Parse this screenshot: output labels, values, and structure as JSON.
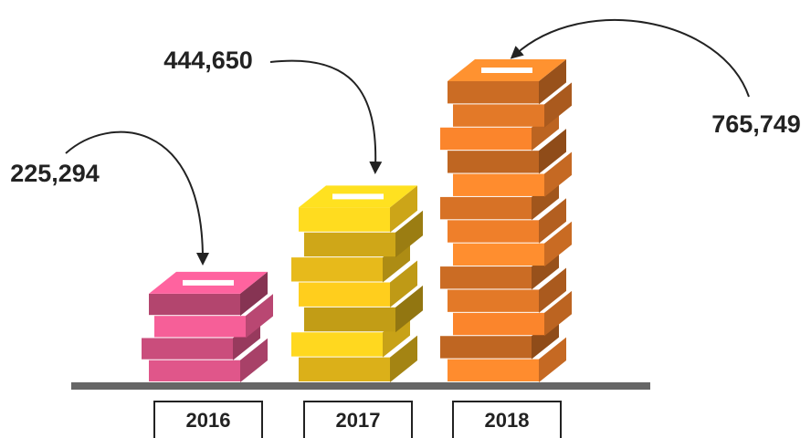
{
  "chart_data": {
    "type": "bar",
    "categories": [
      "2016",
      "2017",
      "2018"
    ],
    "values": [
      225294,
      444650,
      765749
    ],
    "value_labels": [
      "225,294",
      "444,650",
      "765,749"
    ],
    "colors": [
      "#e0568a",
      "#f3c41c",
      "#ef7f2a"
    ]
  }
}
